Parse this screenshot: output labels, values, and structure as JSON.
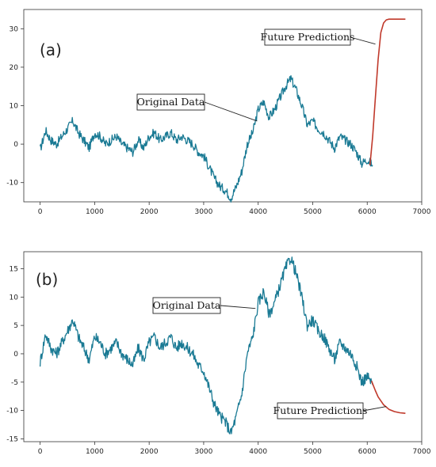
{
  "chart_data": [
    {
      "type": "line",
      "panel_label": "(a)",
      "xlim": [
        -300,
        7000
      ],
      "ylim": [
        -15,
        35
      ],
      "xticks": [
        0,
        1000,
        2000,
        3000,
        4000,
        5000,
        6000,
        7000
      ],
      "yticks": [
        -10,
        0,
        10,
        20,
        30
      ],
      "grid": false,
      "series": [
        {
          "name": "Original Data",
          "color": "#1a7a94",
          "x": [
            0,
            100,
            200,
            300,
            400,
            500,
            600,
            700,
            800,
            900,
            1000,
            1100,
            1200,
            1300,
            1400,
            1500,
            1600,
            1700,
            1800,
            1900,
            2000,
            2100,
            2200,
            2300,
            2400,
            2500,
            2600,
            2700,
            2800,
            2900,
            3000,
            3100,
            3200,
            3300,
            3400,
            3500,
            3600,
            3700,
            3800,
            3900,
            4000,
            4100,
            4200,
            4300,
            4400,
            4500,
            4600,
            4700,
            4800,
            4900,
            5000,
            5100,
            5200,
            5300,
            5400,
            5500,
            5600,
            5700,
            5800,
            5900,
            6000,
            6100
          ],
          "y": [
            -1.5,
            3.5,
            1,
            0,
            2,
            4,
            6,
            3,
            1,
            -1,
            3,
            2,
            0,
            1,
            2,
            0,
            -1,
            -2,
            1,
            -1,
            2,
            3,
            1,
            2,
            3,
            1,
            2,
            1,
            0,
            -2,
            -3,
            -6,
            -9,
            -11,
            -12,
            -14,
            -11,
            -7,
            0,
            3,
            9,
            11,
            7,
            9,
            12,
            15,
            17,
            14,
            10,
            5,
            6,
            4,
            3,
            1,
            -1,
            2,
            1,
            0,
            -2,
            -5,
            -4,
            -5.5
          ],
          "noise_amplitude": 1.2
        },
        {
          "name": "Future Predictions",
          "color": "#c0392b",
          "x": [
            6050,
            6100,
            6150,
            6200,
            6250,
            6300,
            6350,
            6400,
            6500,
            6600,
            6700
          ],
          "y": [
            -5.5,
            2,
            12,
            22,
            29,
            31.5,
            32.3,
            32.5,
            32.5,
            32.5,
            32.5
          ]
        }
      ],
      "annotations": [
        {
          "text": "Original Data",
          "target_x": 3980,
          "target_y": 6
        },
        {
          "text": "Future Predictions",
          "target_x": 6150,
          "target_y": 26
        }
      ]
    },
    {
      "type": "line",
      "panel_label": "(b)",
      "xlim": [
        -300,
        7000
      ],
      "ylim": [
        -15.5,
        18
      ],
      "xticks": [
        0,
        1000,
        2000,
        3000,
        4000,
        5000,
        6000,
        7000
      ],
      "yticks": [
        -15,
        -10,
        -5,
        0,
        5,
        10,
        15
      ],
      "grid": false,
      "series": [
        {
          "name": "Original Data",
          "color": "#1a7a94",
          "x": [
            0,
            100,
            200,
            300,
            400,
            500,
            600,
            700,
            800,
            900,
            1000,
            1100,
            1200,
            1300,
            1400,
            1500,
            1600,
            1700,
            1800,
            1900,
            2000,
            2100,
            2200,
            2300,
            2400,
            2500,
            2600,
            2700,
            2800,
            2900,
            3000,
            3100,
            3200,
            3300,
            3400,
            3500,
            3600,
            3700,
            3800,
            3900,
            4000,
            4100,
            4200,
            4300,
            4400,
            4500,
            4600,
            4700,
            4800,
            4900,
            5000,
            5100,
            5200,
            5300,
            5400,
            5500,
            5600,
            5700,
            5800,
            5900,
            6000,
            6100
          ],
          "y": [
            -1.5,
            3.5,
            1,
            0,
            2,
            4,
            6,
            3,
            1,
            -1,
            3,
            2,
            0,
            1,
            2,
            0,
            -1,
            -2,
            1,
            -1,
            2,
            3,
            1,
            2,
            3,
            1,
            2,
            1,
            0,
            -2,
            -3,
            -6,
            -9,
            -11,
            -12,
            -14,
            -11,
            -7,
            0,
            3,
            9,
            11,
            7,
            9,
            12,
            15,
            17,
            14,
            10,
            5,
            6,
            4,
            3,
            1,
            -1,
            2,
            1,
            0,
            -2,
            -5,
            -4,
            -5.5
          ],
          "noise_amplitude": 1.0
        },
        {
          "name": "Future Predictions",
          "color": "#c0392b",
          "x": [
            6080,
            6150,
            6200,
            6300,
            6400,
            6500,
            6600,
            6700
          ],
          "y": [
            -4.8,
            -6.5,
            -7.6,
            -9.0,
            -9.8,
            -10.2,
            -10.4,
            -10.5
          ]
        }
      ],
      "annotations": [
        {
          "text": "Original Data",
          "target_x": 3950,
          "target_y": 8
        },
        {
          "text": "Future Predictions",
          "target_x": 6350,
          "target_y": -9.3
        }
      ]
    }
  ]
}
